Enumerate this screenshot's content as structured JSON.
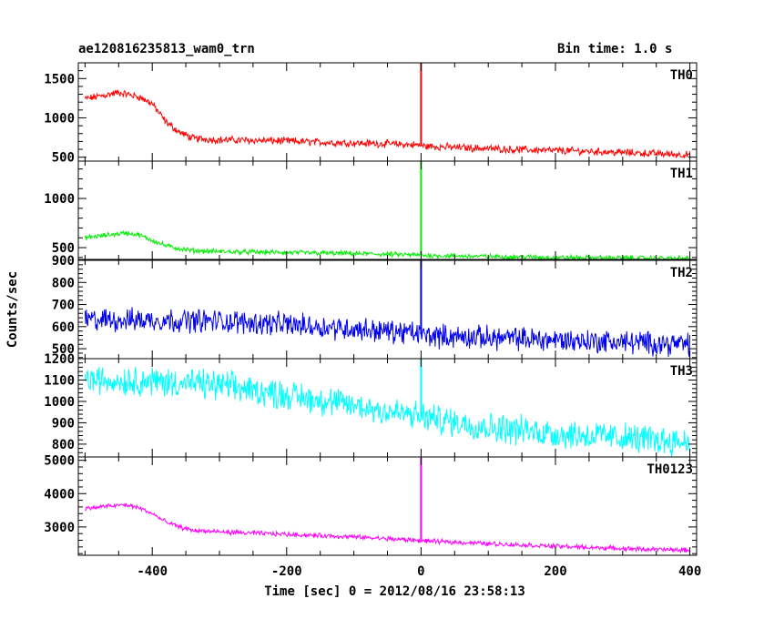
{
  "chart_data": {
    "type": "line",
    "title": "ae120816235813_wam0_trn",
    "subtitle": "Bin time: 1.0 s",
    "xlabel": "Time [sec] 0 = 2012/08/16 23:58:13",
    "ylabel": "Counts/sec",
    "xlim": [
      -510,
      410
    ],
    "x_ticks": [
      -400,
      -200,
      0,
      200,
      400
    ],
    "grid": false,
    "spike_x": 0,
    "series": [
      {
        "name": "TH0",
        "color": "#ff0000",
        "ylim": [
          450,
          1700
        ],
        "y_ticks": [
          500,
          1000,
          1500
        ],
        "x": [
          -500,
          -470,
          -450,
          -420,
          -400,
          -380,
          -360,
          -340,
          -300,
          -250,
          -200,
          -150,
          -100,
          -50,
          -5,
          0,
          5,
          50,
          100,
          150,
          200,
          250,
          300,
          350,
          400
        ],
        "values": [
          1240,
          1290,
          1320,
          1270,
          1180,
          950,
          820,
          740,
          720,
          715,
          705,
          690,
          680,
          670,
          655,
          1700,
          640,
          625,
          610,
          595,
          585,
          575,
          560,
          545,
          530
        ],
        "noise": 38
      },
      {
        "name": "TH1",
        "color": "#00ee00",
        "ylim": [
          380,
          1380
        ],
        "y_ticks": [
          500,
          1000
        ],
        "x": [
          -500,
          -470,
          -440,
          -420,
          -400,
          -380,
          -360,
          -340,
          -300,
          -200,
          -100,
          -5,
          0,
          5,
          100,
          200,
          300,
          400
        ],
        "values": [
          600,
          625,
          650,
          630,
          575,
          520,
          490,
          470,
          460,
          450,
          440,
          425,
          1380,
          420,
          410,
          400,
          395,
          390
        ],
        "noise": 20
      },
      {
        "name": "TH2",
        "color": "#0000ee",
        "ylim": [
          455,
          900
        ],
        "y_ticks": [
          500,
          600,
          700,
          800,
          900
        ],
        "x": [
          -500,
          -400,
          -300,
          -200,
          -100,
          -5,
          0,
          5,
          100,
          200,
          300,
          400
        ],
        "values": [
          630,
          630,
          625,
          610,
          590,
          570,
          900,
          560,
          550,
          540,
          530,
          520
        ],
        "noise": 42
      },
      {
        "name": "TH3",
        "color": "#00ffff",
        "ylim": [
          740,
          1200
        ],
        "y_ticks": [
          800,
          900,
          1000,
          1100,
          1200
        ],
        "x": [
          -500,
          -400,
          -300,
          -200,
          -100,
          -5,
          0,
          5,
          100,
          200,
          300,
          400
        ],
        "values": [
          1100,
          1095,
          1075,
          1030,
          980,
          930,
          1200,
          925,
          880,
          850,
          830,
          810
        ],
        "noise": 55
      },
      {
        "name": "TH0123",
        "color": "#ff00ff",
        "ylim": [
          2150,
          5100
        ],
        "y_ticks": [
          3000,
          4000,
          5000
        ],
        "x": [
          -500,
          -470,
          -440,
          -420,
          -400,
          -380,
          -360,
          -340,
          -300,
          -200,
          -100,
          -5,
          0,
          5,
          100,
          200,
          300,
          400
        ],
        "values": [
          3550,
          3620,
          3660,
          3580,
          3400,
          3150,
          3000,
          2900,
          2850,
          2780,
          2700,
          2600,
          5100,
          2580,
          2500,
          2420,
          2350,
          2300
        ],
        "noise": 55
      }
    ]
  }
}
